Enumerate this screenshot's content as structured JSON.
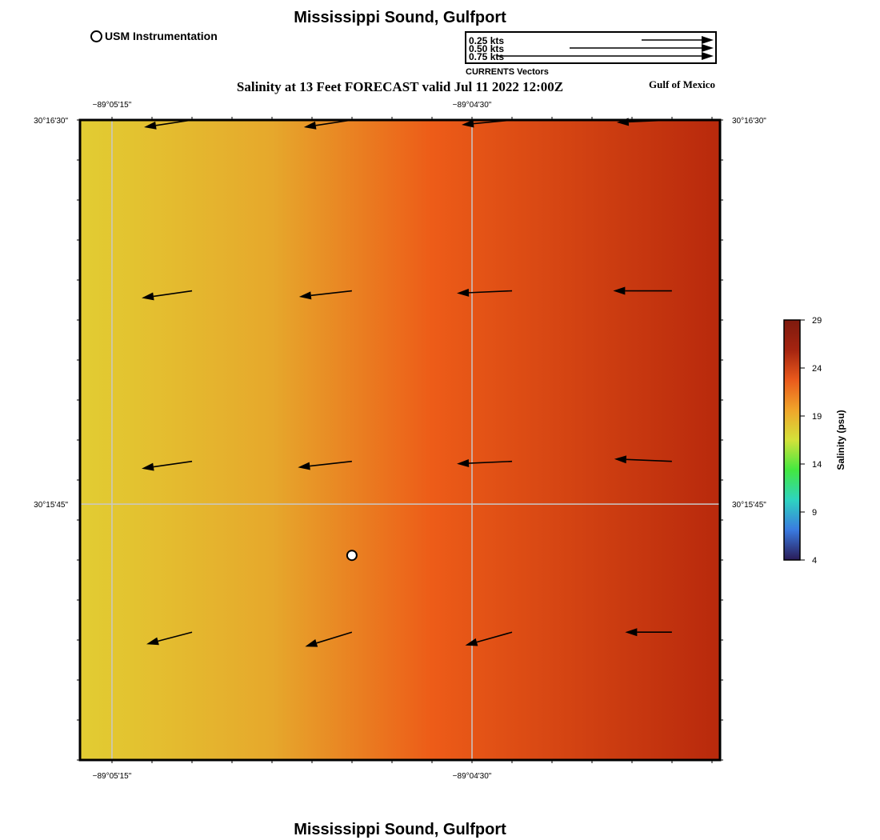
{
  "header": {
    "title": "Mississippi Sound, Gulfport",
    "subtitle": "Salinity at 13 Feet FORECAST valid Jul 11 2022 12:00Z",
    "region": "Gulf of Mexico"
  },
  "footer": {
    "title": "Mississippi Sound, Gulfport"
  },
  "legend": {
    "station_label": "USM Instrumentation",
    "vector_caption": "CURRENTS Vectors",
    "reference_vectors": [
      {
        "label": "0.25 kts",
        "speed": 0.25
      },
      {
        "label": "0.50 kts",
        "speed": 0.5
      },
      {
        "label": "0.75 kts",
        "speed": 0.75
      }
    ]
  },
  "map": {
    "lon_ticks": [
      {
        "label": "−89°05'15\"",
        "lon": -89.0875
      },
      {
        "label": "−89°04'30\"",
        "lon": -89.075
      }
    ],
    "lat_ticks": [
      {
        "label": "30°16'30\"",
        "lat": 30.275
      },
      {
        "label": "30°15'45\"",
        "lat": 30.2625
      }
    ],
    "extent": {
      "lon_min": -89.08861,
      "lon_max": -89.06639,
      "lat_min": 30.25417,
      "lat_max": 30.275
    },
    "grid": true,
    "station": {
      "name": "USM Instrumentation",
      "lon": -89.07917,
      "lat": 30.26083
    },
    "currents_kts": [
      {
        "lon": -89.08472,
        "lat": 30.275,
        "u": -0.4,
        "v": -0.06
      },
      {
        "lon": -89.07917,
        "lat": 30.275,
        "u": -0.4,
        "v": -0.06
      },
      {
        "lon": -89.07361,
        "lat": 30.275,
        "u": -0.42,
        "v": -0.04
      },
      {
        "lon": -89.06806,
        "lat": 30.275,
        "u": -0.46,
        "v": -0.02
      },
      {
        "lon": -89.08472,
        "lat": 30.26944,
        "u": -0.42,
        "v": -0.06
      },
      {
        "lon": -89.07917,
        "lat": 30.26944,
        "u": -0.44,
        "v": -0.05
      },
      {
        "lon": -89.07361,
        "lat": 30.26944,
        "u": -0.46,
        "v": -0.02
      },
      {
        "lon": -89.06806,
        "lat": 30.26944,
        "u": -0.49,
        "v": 0.0
      },
      {
        "lon": -89.08472,
        "lat": 30.26389,
        "u": -0.42,
        "v": -0.06
      },
      {
        "lon": -89.07917,
        "lat": 30.26389,
        "u": -0.45,
        "v": -0.05
      },
      {
        "lon": -89.07361,
        "lat": 30.26389,
        "u": -0.46,
        "v": -0.02
      },
      {
        "lon": -89.06806,
        "lat": 30.26389,
        "u": -0.48,
        "v": 0.02
      },
      {
        "lon": -89.08472,
        "lat": 30.25833,
        "u": -0.38,
        "v": -0.1
      },
      {
        "lon": -89.07917,
        "lat": 30.25833,
        "u": -0.39,
        "v": -0.12
      },
      {
        "lon": -89.07361,
        "lat": 30.25833,
        "u": -0.39,
        "v": -0.11
      },
      {
        "lon": -89.06806,
        "lat": 30.25833,
        "u": -0.39,
        "v": 0.0
      }
    ]
  },
  "colorbar": {
    "title": "Salinity (psu)",
    "min": 4,
    "max": 29,
    "ticks": [
      4,
      9,
      14,
      19,
      24,
      29
    ],
    "tick_labels": [
      "4",
      "9",
      "14",
      "19",
      "24",
      "29"
    ],
    "colors": [
      "#2a1b57",
      "#3a7ae0",
      "#2ed3c0",
      "#43e840",
      "#d4e23a",
      "#f0a52a",
      "#ea5a1c",
      "#a52410",
      "#7e1a0e"
    ]
  },
  "field_colors": {
    "west": "#e2cd32",
    "mid_west": "#e6a82c",
    "middle": "#ed5c18",
    "east": "#b8290c"
  }
}
